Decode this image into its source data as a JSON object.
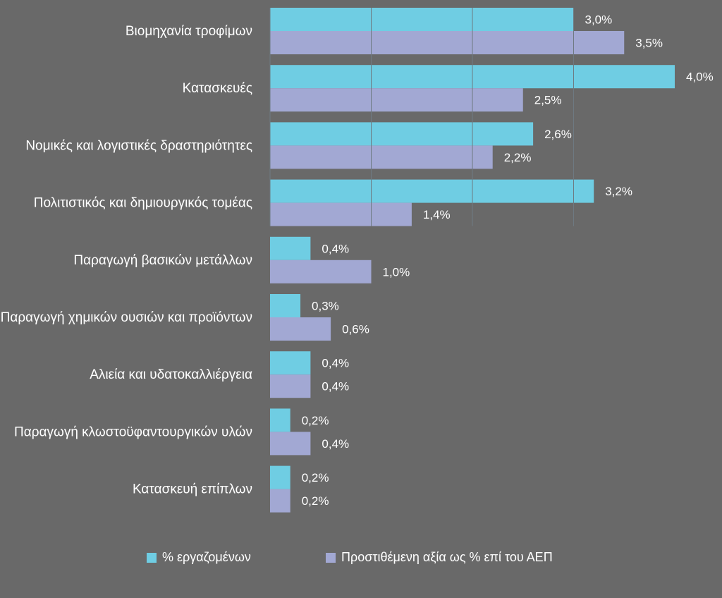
{
  "chart_data": {
    "type": "bar",
    "orientation": "horizontal",
    "categories": [
      "Βιομηχανία τροφίμων",
      "Κατασκευές",
      "Νομικές και λογιστικές δραστηριότητες",
      "Πολιτιστικός και δημιουργικός τομέας",
      "Παραγωγή βασικών μετάλλων",
      "Παραγωγή χημικών ουσιών και προϊόντων",
      "Αλιεία και υδατοκαλλιέργεια",
      "Παραγωγή κλωστοϋφαντουργικών υλών",
      "Κατασκευή επίπλων"
    ],
    "series": [
      {
        "name": "% εργαζομένων",
        "color": "#6fcde3",
        "values": [
          3.0,
          4.0,
          2.6,
          3.2,
          0.4,
          0.3,
          0.4,
          0.2,
          0.2
        ],
        "labels": [
          "3,0%",
          "4,0%",
          "2,6%",
          "3,2%",
          "0,4%",
          "0,3%",
          "0,4%",
          "0,2%",
          "0,2%"
        ]
      },
      {
        "name": "Προστιθέμενη αξία ως % επί του ΑΕΠ",
        "color": "#a2a8d3",
        "values": [
          3.5,
          2.5,
          2.2,
          1.4,
          1.0,
          0.6,
          0.4,
          0.4,
          0.2
        ],
        "labels": [
          "3,5%",
          "2,5%",
          "2,2%",
          "1,4%",
          "1,0%",
          "0,6%",
          "0,4%",
          "0,4%",
          "0,2%"
        ]
      }
    ],
    "xlim": [
      0,
      4.0
    ],
    "grid": true,
    "legend_position": "bottom",
    "background": "#696969"
  }
}
